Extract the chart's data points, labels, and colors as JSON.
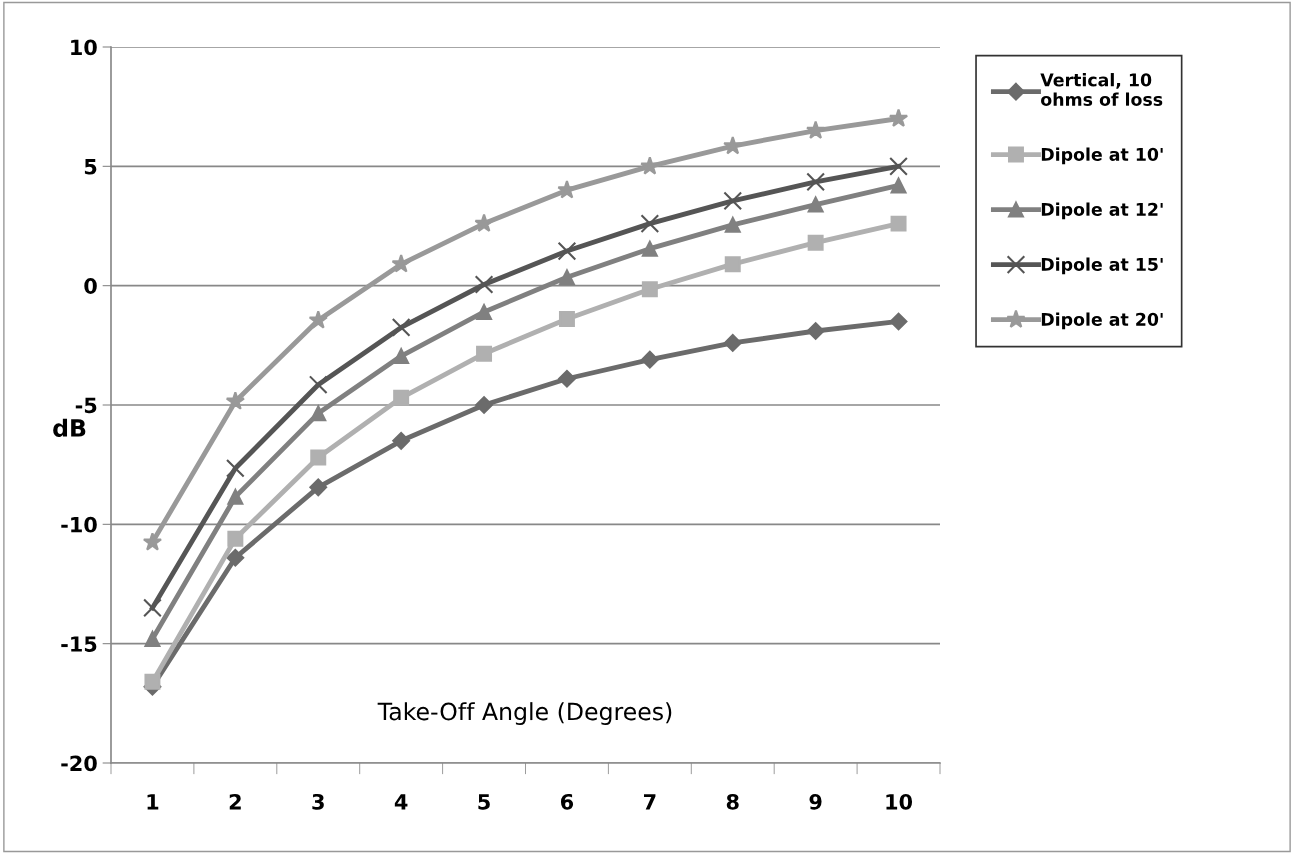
{
  "chart_data": {
    "type": "line",
    "xlabel": "Take-Off Angle (Degrees)",
    "ylabel": "dB",
    "categories": [
      "1",
      "2",
      "3",
      "4",
      "5",
      "6",
      "7",
      "8",
      "9",
      "10"
    ],
    "ylim": [
      -20,
      10
    ],
    "yticks": [
      -20,
      -15,
      -10,
      -5,
      0,
      5,
      10
    ],
    "grid": "y",
    "legend": "right",
    "line_style": "solid",
    "series": [
      {
        "name": "Vertical, 10 ohms of loss",
        "color": "#6b6b6b",
        "marker": "diamond",
        "values": [
          -16.8,
          -11.4,
          -8.45,
          -6.5,
          -5.0,
          -3.9,
          -3.1,
          -2.4,
          -1.9,
          -1.5
        ]
      },
      {
        "name": "Dipole at 10'",
        "color": "#b0b0b0",
        "marker": "square",
        "values": [
          -16.6,
          -10.6,
          -7.2,
          -4.7,
          -2.85,
          -1.4,
          -0.15,
          0.9,
          1.8,
          2.6
        ]
      },
      {
        "name": "Dipole at 12'",
        "color": "#808080",
        "marker": "triangle",
        "values": [
          -14.8,
          -8.85,
          -5.35,
          -2.95,
          -1.1,
          0.35,
          1.55,
          2.55,
          3.4,
          4.2
        ]
      },
      {
        "name": "Dipole at 15'",
        "color": "#555555",
        "marker": "cross",
        "values": [
          -13.5,
          -7.65,
          -4.15,
          -1.75,
          0.05,
          1.45,
          2.6,
          3.55,
          4.35,
          5.0
        ]
      },
      {
        "name": "Dipole at 20'",
        "color": "#999999",
        "marker": "star",
        "values": [
          -10.75,
          -4.85,
          -1.45,
          0.9,
          2.6,
          4.0,
          5.0,
          5.85,
          6.5,
          7.0
        ]
      }
    ]
  }
}
